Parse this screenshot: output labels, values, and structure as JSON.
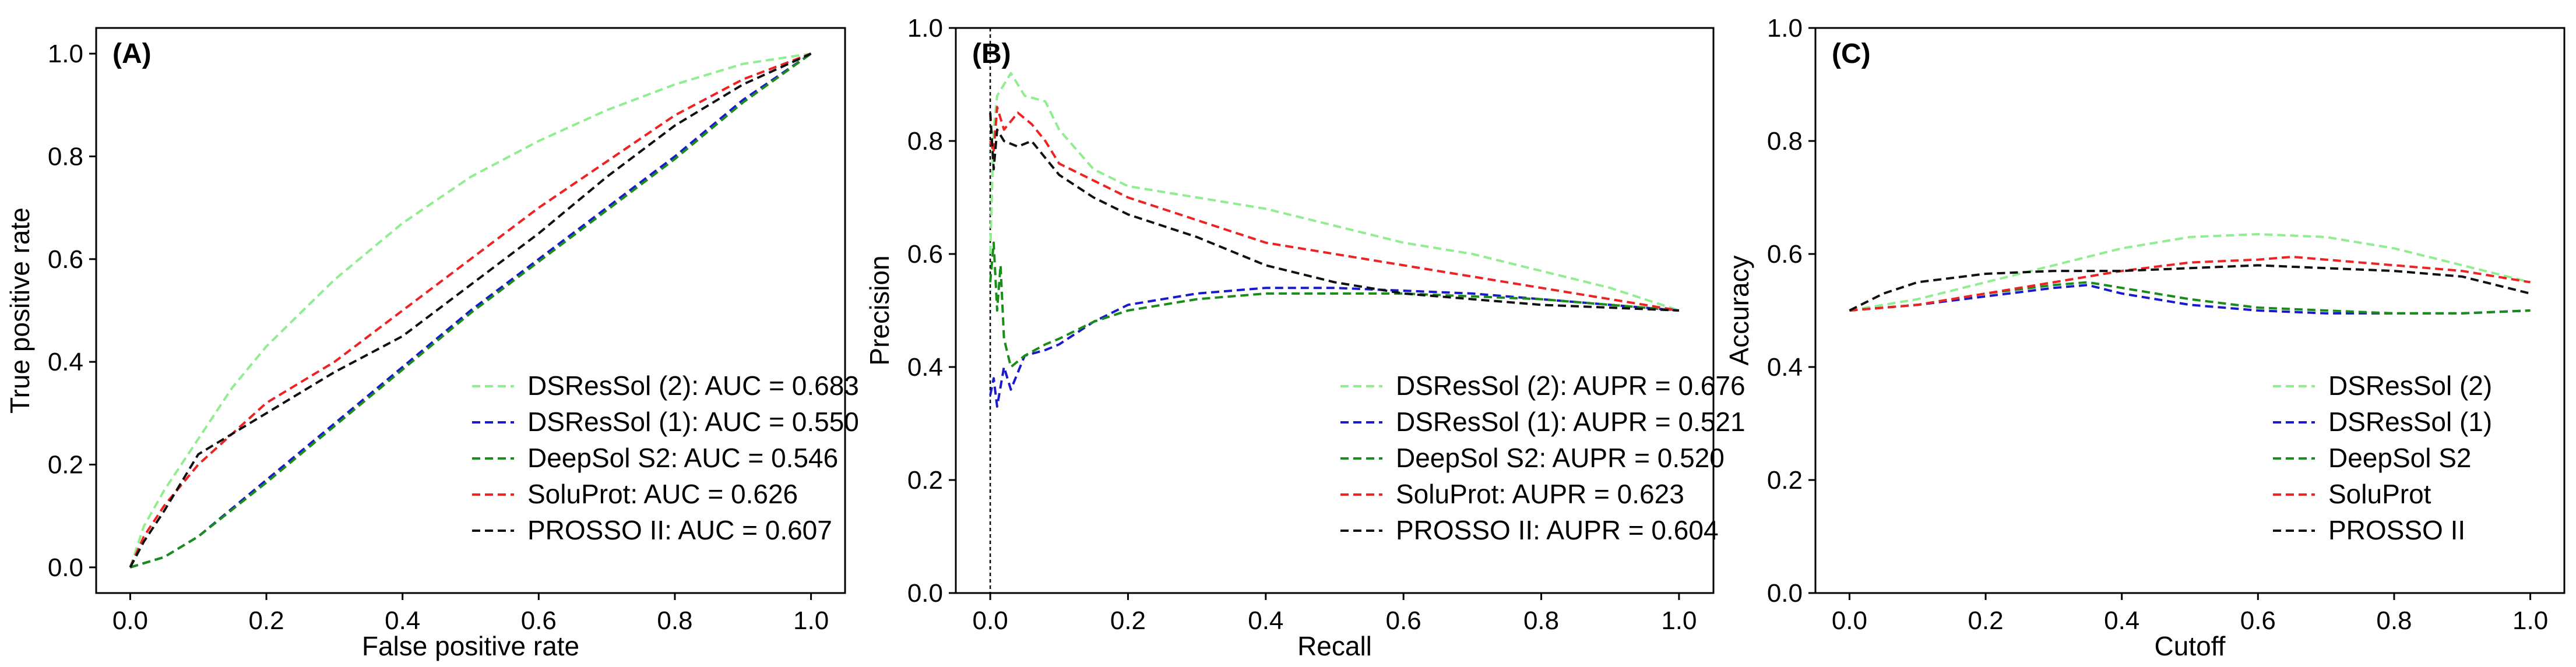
{
  "chart_data": [
    {
      "type": "line",
      "panel_label": "(A)",
      "xlabel": "False positive rate",
      "ylabel": "True positive rate",
      "xlim": [
        -0.05,
        1.05
      ],
      "ylim": [
        -0.05,
        1.05
      ],
      "xticks": [
        "0.0",
        "0.2",
        "0.4",
        "0.6",
        "0.8",
        "1.0"
      ],
      "yticks": [
        "0.0",
        "0.2",
        "0.4",
        "0.6",
        "0.8",
        "1.0"
      ],
      "legend_position": "bottom-right",
      "series": [
        {
          "name": "DSResSol (2): AUC = 0.683",
          "color": "#90ee90",
          "x": [
            0,
            0.02,
            0.05,
            0.1,
            0.15,
            0.2,
            0.3,
            0.4,
            0.5,
            0.6,
            0.7,
            0.8,
            0.9,
            1.0
          ],
          "y": [
            0,
            0.08,
            0.15,
            0.25,
            0.35,
            0.43,
            0.56,
            0.67,
            0.76,
            0.83,
            0.89,
            0.94,
            0.98,
            1.0
          ]
        },
        {
          "name": "DSResSol (1): AUC = 0.550",
          "color": "#1a1acc",
          "x": [
            0,
            0.05,
            0.1,
            0.2,
            0.3,
            0.4,
            0.5,
            0.6,
            0.7,
            0.8,
            0.9,
            1.0
          ],
          "y": [
            0,
            0.02,
            0.06,
            0.17,
            0.28,
            0.39,
            0.5,
            0.6,
            0.7,
            0.8,
            0.91,
            1.0
          ]
        },
        {
          "name": "DeepSol S2: AUC = 0.546",
          "color": "#1a8c1a",
          "x": [
            0,
            0.05,
            0.1,
            0.2,
            0.3,
            0.4,
            0.5,
            0.6,
            0.7,
            0.8,
            0.9,
            1.0
          ],
          "y": [
            0,
            0.02,
            0.06,
            0.165,
            0.275,
            0.385,
            0.495,
            0.595,
            0.695,
            0.795,
            0.905,
            1.0
          ]
        },
        {
          "name": "SoluProt: AUC = 0.626",
          "color": "#ee2222",
          "x": [
            0,
            0.02,
            0.05,
            0.1,
            0.2,
            0.3,
            0.4,
            0.5,
            0.6,
            0.7,
            0.8,
            0.9,
            1.0
          ],
          "y": [
            0,
            0.06,
            0.12,
            0.2,
            0.32,
            0.4,
            0.5,
            0.6,
            0.7,
            0.79,
            0.88,
            0.95,
            1.0
          ]
        },
        {
          "name": "PROSSO II: AUC = 0.607",
          "color": "#111111",
          "x": [
            0,
            0.02,
            0.05,
            0.1,
            0.2,
            0.3,
            0.4,
            0.5,
            0.6,
            0.7,
            0.8,
            0.9,
            1.0
          ],
          "y": [
            0,
            0.05,
            0.11,
            0.22,
            0.3,
            0.38,
            0.45,
            0.55,
            0.65,
            0.76,
            0.86,
            0.94,
            1.0
          ]
        }
      ]
    },
    {
      "type": "line",
      "panel_label": "(B)",
      "xlabel": "Recall",
      "ylabel": "Precision",
      "xlim": [
        -0.05,
        1.05
      ],
      "ylim": [
        0,
        1
      ],
      "xticks": [
        "0.0",
        "0.2",
        "0.4",
        "0.6",
        "0.8",
        "1.0"
      ],
      "yticks": [
        "0.0",
        "0.2",
        "0.4",
        "0.6",
        "0.8",
        "1.0"
      ],
      "legend_position": "bottom-right",
      "series": [
        {
          "name": "DSResSol (2): AUPR = 0.676",
          "color": "#90ee90",
          "x": [
            0,
            0.005,
            0.01,
            0.02,
            0.03,
            0.05,
            0.08,
            0.1,
            0.15,
            0.2,
            0.3,
            0.4,
            0.5,
            0.6,
            0.7,
            0.8,
            0.9,
            1.0
          ],
          "y": [
            0.6,
            0.82,
            0.88,
            0.9,
            0.92,
            0.88,
            0.87,
            0.82,
            0.75,
            0.72,
            0.7,
            0.68,
            0.65,
            0.62,
            0.6,
            0.57,
            0.54,
            0.5
          ]
        },
        {
          "name": "DSResSol (1): AUPR = 0.521",
          "color": "#1a1acc",
          "x": [
            0,
            0.005,
            0.01,
            0.02,
            0.03,
            0.05,
            0.08,
            0.1,
            0.15,
            0.2,
            0.3,
            0.4,
            0.5,
            0.6,
            0.7,
            0.8,
            0.9,
            1.0
          ],
          "y": [
            0.35,
            0.38,
            0.33,
            0.4,
            0.36,
            0.42,
            0.43,
            0.44,
            0.48,
            0.51,
            0.53,
            0.54,
            0.54,
            0.535,
            0.53,
            0.52,
            0.51,
            0.5
          ]
        },
        {
          "name": "DeepSol S2: AUPR = 0.520",
          "color": "#1a8c1a",
          "x": [
            0,
            0.005,
            0.01,
            0.015,
            0.02,
            0.03,
            0.05,
            0.08,
            0.1,
            0.15,
            0.2,
            0.3,
            0.4,
            0.5,
            0.6,
            0.7,
            0.8,
            0.9,
            1.0
          ],
          "y": [
            0.55,
            0.62,
            0.5,
            0.58,
            0.45,
            0.4,
            0.42,
            0.44,
            0.45,
            0.48,
            0.5,
            0.52,
            0.53,
            0.53,
            0.53,
            0.525,
            0.52,
            0.51,
            0.5
          ]
        },
        {
          "name": "SoluProt: AUPR = 0.623",
          "color": "#ee2222",
          "x": [
            0,
            0.005,
            0.01,
            0.02,
            0.04,
            0.06,
            0.08,
            0.1,
            0.15,
            0.2,
            0.3,
            0.4,
            0.5,
            0.6,
            0.7,
            0.8,
            0.9,
            1.0
          ],
          "y": [
            0.8,
            0.78,
            0.86,
            0.82,
            0.85,
            0.83,
            0.8,
            0.76,
            0.73,
            0.7,
            0.66,
            0.62,
            0.6,
            0.58,
            0.56,
            0.54,
            0.52,
            0.5
          ]
        },
        {
          "name": "PROSSO II: AUPR = 0.604",
          "color": "#111111",
          "x": [
            0,
            0.005,
            0.01,
            0.02,
            0.04,
            0.06,
            0.08,
            0.1,
            0.15,
            0.2,
            0.3,
            0.4,
            0.5,
            0.6,
            0.7,
            0.8,
            0.9,
            1.0
          ],
          "y": [
            0.85,
            0.75,
            0.82,
            0.8,
            0.79,
            0.8,
            0.77,
            0.74,
            0.7,
            0.67,
            0.63,
            0.58,
            0.55,
            0.53,
            0.52,
            0.51,
            0.505,
            0.5
          ]
        }
      ]
    },
    {
      "type": "line",
      "panel_label": "(C)",
      "xlabel": "Cutoff",
      "ylabel": "Accuracy",
      "xlim": [
        -0.05,
        1.05
      ],
      "ylim": [
        0,
        1
      ],
      "xticks": [
        "0.0",
        "0.2",
        "0.4",
        "0.6",
        "0.8",
        "1.0"
      ],
      "yticks": [
        "0.0",
        "0.2",
        "0.4",
        "0.6",
        "0.8",
        "1.0"
      ],
      "legend_position": "bottom-right",
      "series": [
        {
          "name": "DSResSol (2)",
          "color": "#90ee90",
          "x": [
            0,
            0.1,
            0.2,
            0.3,
            0.4,
            0.5,
            0.6,
            0.7,
            0.8,
            0.9,
            1.0
          ],
          "y": [
            0.5,
            0.52,
            0.55,
            0.58,
            0.61,
            0.63,
            0.635,
            0.63,
            0.61,
            0.58,
            0.55
          ]
        },
        {
          "name": "DSResSol (1)",
          "color": "#1a1acc",
          "x": [
            0,
            0.1,
            0.2,
            0.3,
            0.35,
            0.4,
            0.5,
            0.6,
            0.7,
            0.8,
            0.9,
            1.0
          ],
          "y": [
            0.5,
            0.51,
            0.525,
            0.54,
            0.545,
            0.53,
            0.51,
            0.5,
            0.495,
            0.495,
            0.495,
            0.5
          ]
        },
        {
          "name": "DeepSol S2",
          "color": "#1a8c1a",
          "x": [
            0,
            0.1,
            0.2,
            0.3,
            0.35,
            0.4,
            0.5,
            0.6,
            0.7,
            0.8,
            0.9,
            1.0
          ],
          "y": [
            0.5,
            0.51,
            0.53,
            0.545,
            0.55,
            0.54,
            0.52,
            0.505,
            0.5,
            0.495,
            0.495,
            0.5
          ]
        },
        {
          "name": "SoluProt",
          "color": "#ee2222",
          "x": [
            0,
            0.1,
            0.2,
            0.3,
            0.4,
            0.5,
            0.6,
            0.65,
            0.7,
            0.8,
            0.9,
            1.0
          ],
          "y": [
            0.5,
            0.51,
            0.53,
            0.55,
            0.57,
            0.585,
            0.59,
            0.595,
            0.59,
            0.58,
            0.57,
            0.55
          ]
        },
        {
          "name": "PROSSO II",
          "color": "#111111",
          "x": [
            0,
            0.05,
            0.1,
            0.2,
            0.3,
            0.4,
            0.5,
            0.6,
            0.7,
            0.8,
            0.9,
            1.0
          ],
          "y": [
            0.5,
            0.53,
            0.55,
            0.565,
            0.57,
            0.57,
            0.575,
            0.58,
            0.575,
            0.57,
            0.56,
            0.53
          ]
        }
      ]
    }
  ]
}
